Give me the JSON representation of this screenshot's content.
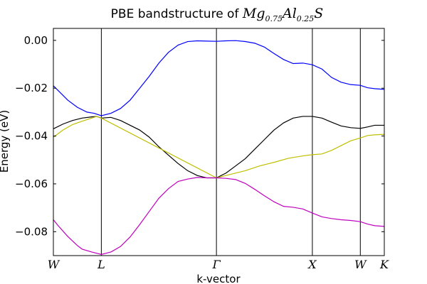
{
  "chart_data": {
    "type": "line",
    "title": {
      "prefix": "PBE bandstructure of ",
      "formula": {
        "Mg": "Mg",
        "mg_sub": "0.75",
        "Al": "Al",
        "al_sub": "0.25",
        "S": "S"
      }
    },
    "xlabel": "k-vector",
    "ylabel": "Energy (eV)",
    "xlim": [
      0,
      6.9
    ],
    "ylim": [
      -0.09,
      0.005
    ],
    "yticks": [
      0.0,
      -0.02,
      -0.04,
      -0.06,
      -0.08
    ],
    "ytick_labels": [
      "0.00",
      "−0.02",
      "−0.04",
      "−0.06",
      "−0.08"
    ],
    "kpoints": [
      {
        "label": "W",
        "x": 0.0
      },
      {
        "label": "L",
        "x": 1.0
      },
      {
        "label": "Γ",
        "x": 3.4
      },
      {
        "label": "X",
        "x": 5.4
      },
      {
        "label": "W",
        "x": 6.4
      },
      {
        "label": "K",
        "x": 6.9
      }
    ],
    "grid": false,
    "series": [
      {
        "color": "#0000ff",
        "x": [
          0.0,
          0.1,
          0.3,
          0.5,
          0.7,
          0.85,
          1.0,
          1.2,
          1.4,
          1.6,
          1.8,
          2.0,
          2.2,
          2.4,
          2.6,
          2.8,
          3.0,
          3.2,
          3.4,
          3.6,
          3.8,
          4.0,
          4.2,
          4.4,
          4.6,
          4.8,
          5.0,
          5.2,
          5.4,
          5.6,
          5.8,
          6.0,
          6.2,
          6.4,
          6.55,
          6.7,
          6.9
        ],
        "y": [
          -0.019,
          -0.021,
          -0.025,
          -0.028,
          -0.03,
          -0.0305,
          -0.0315,
          -0.0305,
          -0.0285,
          -0.025,
          -0.02,
          -0.015,
          -0.0095,
          -0.005,
          -0.002,
          -0.0005,
          -0.0002,
          -0.0003,
          -0.0004,
          -0.0002,
          -0.0001,
          -0.0005,
          -0.0012,
          -0.0028,
          -0.0055,
          -0.008,
          -0.0097,
          -0.0095,
          -0.0102,
          -0.012,
          -0.0155,
          -0.0175,
          -0.0185,
          -0.0188,
          -0.0198,
          -0.0202,
          -0.0205
        ]
      },
      {
        "color": "#000000",
        "x": [
          0.0,
          0.2,
          0.4,
          0.6,
          0.8,
          0.9,
          1.0,
          1.2,
          1.4,
          1.6,
          1.8,
          2.0,
          2.2,
          2.4,
          2.6,
          2.8,
          3.0,
          3.2,
          3.4,
          3.6,
          3.8,
          4.0,
          4.2,
          4.4,
          4.6,
          4.8,
          5.0,
          5.2,
          5.4,
          5.6,
          5.8,
          6.0,
          6.2,
          6.4,
          6.55,
          6.7,
          6.9
        ],
        "y": [
          -0.037,
          -0.035,
          -0.0335,
          -0.0325,
          -0.032,
          -0.0318,
          -0.0325,
          -0.0322,
          -0.0335,
          -0.0355,
          -0.0375,
          -0.0405,
          -0.0445,
          -0.048,
          -0.0515,
          -0.0545,
          -0.0565,
          -0.0575,
          -0.0575,
          -0.0555,
          -0.0525,
          -0.0495,
          -0.0455,
          -0.0415,
          -0.0375,
          -0.0345,
          -0.0325,
          -0.0318,
          -0.0318,
          -0.0325,
          -0.0342,
          -0.0358,
          -0.0365,
          -0.0368,
          -0.0362,
          -0.0355,
          -0.0355
        ]
      },
      {
        "color": "#bfbf00",
        "x": [
          0.0,
          0.2,
          0.4,
          0.6,
          0.8,
          0.9,
          1.0,
          3.4,
          3.7,
          4.0,
          4.3,
          4.6,
          4.9,
          5.2,
          5.4,
          5.6,
          5.8,
          6.0,
          6.2,
          6.4,
          6.55,
          6.7,
          6.9
        ],
        "y": [
          -0.0405,
          -0.0375,
          -0.0352,
          -0.0338,
          -0.0325,
          -0.0318,
          -0.0325,
          -0.0575,
          -0.056,
          -0.0545,
          -0.0525,
          -0.051,
          -0.0493,
          -0.0483,
          -0.0478,
          -0.0475,
          -0.046,
          -0.044,
          -0.042,
          -0.0408,
          -0.0398,
          -0.0395,
          -0.0393
        ]
      },
      {
        "color": "#bf00bf",
        "x": [
          0.0,
          0.1,
          0.3,
          0.5,
          0.6,
          0.8,
          1.0,
          1.2,
          1.4,
          1.6,
          1.8,
          2.0,
          2.2,
          2.4,
          2.6,
          2.8,
          3.0,
          3.2,
          3.4,
          3.6,
          3.8,
          4.0,
          4.2,
          4.4,
          4.6,
          4.8,
          5.0,
          5.2,
          5.4,
          5.6,
          5.8,
          6.0,
          6.2,
          6.4,
          6.55,
          6.7,
          6.9
        ],
        "y": [
          -0.075,
          -0.0775,
          -0.082,
          -0.0858,
          -0.0873,
          -0.0885,
          -0.0895,
          -0.0885,
          -0.0862,
          -0.0822,
          -0.077,
          -0.0715,
          -0.066,
          -0.062,
          -0.059,
          -0.058,
          -0.0573,
          -0.0575,
          -0.0575,
          -0.0577,
          -0.0582,
          -0.0598,
          -0.0623,
          -0.065,
          -0.0675,
          -0.0694,
          -0.0698,
          -0.0705,
          -0.0722,
          -0.0738,
          -0.0745,
          -0.075,
          -0.0753,
          -0.0758,
          -0.0768,
          -0.0775,
          -0.0778
        ]
      }
    ]
  }
}
